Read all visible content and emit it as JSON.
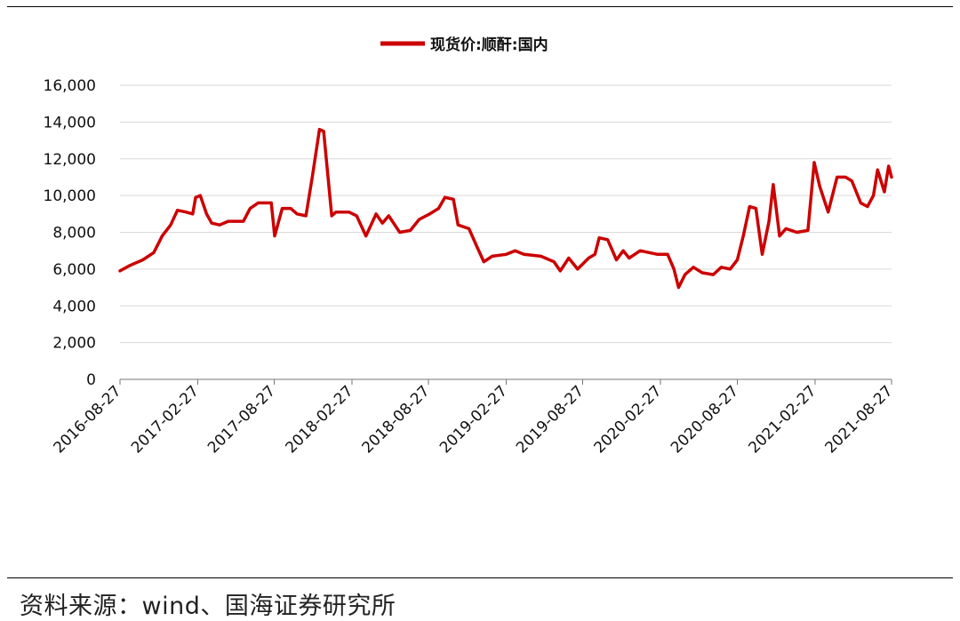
{
  "source": "资料来源：wind、国海证券研究所",
  "chart_data": {
    "type": "line",
    "title": "",
    "xlabel": "",
    "ylabel": "",
    "legend_position": "top",
    "grid": "horizontal",
    "line_color": "#cc0000",
    "x_range": [
      "2016-08-27",
      "2021-08-27"
    ],
    "ylim": [
      0,
      16000
    ],
    "yticks": [
      0,
      2000,
      4000,
      6000,
      8000,
      10000,
      12000,
      14000,
      16000
    ],
    "ytick_labels": [
      "0",
      "2,000",
      "4,000",
      "6,000",
      "8,000",
      "10,000",
      "12,000",
      "14,000",
      "16,000"
    ],
    "xtick_labels": [
      "2016-08-27",
      "2017-02-27",
      "2017-08-27",
      "2018-02-27",
      "2018-08-27",
      "2019-02-27",
      "2019-08-27",
      "2020-02-27",
      "2020-08-27",
      "2021-02-27",
      "2021-08-27"
    ],
    "series": [
      {
        "name": "现货价:顺酐:国内",
        "points": [
          [
            "2016-08-27",
            5900
          ],
          [
            "2016-09-20",
            6200
          ],
          [
            "2016-10-20",
            6500
          ],
          [
            "2016-11-15",
            6900
          ],
          [
            "2016-12-05",
            7800
          ],
          [
            "2016-12-25",
            8400
          ],
          [
            "2017-01-10",
            9200
          ],
          [
            "2017-01-30",
            9100
          ],
          [
            "2017-02-15",
            9000
          ],
          [
            "2017-02-22",
            9900
          ],
          [
            "2017-03-05",
            10000
          ],
          [
            "2017-03-20",
            9000
          ],
          [
            "2017-04-01",
            8500
          ],
          [
            "2017-04-20",
            8400
          ],
          [
            "2017-05-10",
            8600
          ],
          [
            "2017-06-15",
            8600
          ],
          [
            "2017-07-01",
            9300
          ],
          [
            "2017-07-20",
            9600
          ],
          [
            "2017-08-20",
            9600
          ],
          [
            "2017-08-28",
            7800
          ],
          [
            "2017-09-15",
            9300
          ],
          [
            "2017-10-05",
            9300
          ],
          [
            "2017-10-20",
            9000
          ],
          [
            "2017-11-10",
            8900
          ],
          [
            "2017-11-25",
            11000
          ],
          [
            "2017-12-12",
            13600
          ],
          [
            "2017-12-22",
            13500
          ],
          [
            "2018-01-10",
            8900
          ],
          [
            "2018-01-20",
            9100
          ],
          [
            "2018-02-20",
            9100
          ],
          [
            "2018-03-10",
            8900
          ],
          [
            "2018-04-01",
            7800
          ],
          [
            "2018-04-25",
            9000
          ],
          [
            "2018-05-10",
            8500
          ],
          [
            "2018-05-25",
            8900
          ],
          [
            "2018-06-20",
            8000
          ],
          [
            "2018-07-15",
            8100
          ],
          [
            "2018-08-05",
            8700
          ],
          [
            "2018-08-30",
            9000
          ],
          [
            "2018-09-20",
            9300
          ],
          [
            "2018-10-05",
            9900
          ],
          [
            "2018-10-25",
            9800
          ],
          [
            "2018-11-05",
            8400
          ],
          [
            "2018-12-01",
            8200
          ],
          [
            "2018-12-20",
            7200
          ],
          [
            "2019-01-05",
            6400
          ],
          [
            "2019-01-25",
            6700
          ],
          [
            "2019-02-27",
            6800
          ],
          [
            "2019-03-20",
            7000
          ],
          [
            "2019-04-10",
            6800
          ],
          [
            "2019-05-20",
            6700
          ],
          [
            "2019-06-20",
            6400
          ],
          [
            "2019-07-05",
            5900
          ],
          [
            "2019-07-25",
            6600
          ],
          [
            "2019-08-15",
            6000
          ],
          [
            "2019-09-10",
            6600
          ],
          [
            "2019-09-25",
            6800
          ],
          [
            "2019-10-05",
            7700
          ],
          [
            "2019-10-25",
            7600
          ],
          [
            "2019-11-15",
            6500
          ],
          [
            "2019-12-01",
            7000
          ],
          [
            "2019-12-15",
            6600
          ],
          [
            "2020-01-10",
            7000
          ],
          [
            "2020-02-20",
            6800
          ],
          [
            "2020-03-15",
            6800
          ],
          [
            "2020-03-30",
            6000
          ],
          [
            "2020-04-10",
            5000
          ],
          [
            "2020-04-25",
            5700
          ],
          [
            "2020-05-15",
            6100
          ],
          [
            "2020-06-05",
            5800
          ],
          [
            "2020-07-01",
            5700
          ],
          [
            "2020-07-20",
            6100
          ],
          [
            "2020-08-10",
            6000
          ],
          [
            "2020-08-27",
            6500
          ],
          [
            "2020-09-10",
            7800
          ],
          [
            "2020-09-25",
            9400
          ],
          [
            "2020-10-10",
            9300
          ],
          [
            "2020-10-25",
            6800
          ],
          [
            "2020-11-10",
            8600
          ],
          [
            "2020-11-20",
            10600
          ],
          [
            "2020-12-05",
            7800
          ],
          [
            "2020-12-20",
            8200
          ],
          [
            "2021-01-15",
            8000
          ],
          [
            "2021-02-10",
            8100
          ],
          [
            "2021-02-25",
            11800
          ],
          [
            "2021-03-10",
            10500
          ],
          [
            "2021-03-30",
            9100
          ],
          [
            "2021-04-20",
            11000
          ],
          [
            "2021-05-10",
            11000
          ],
          [
            "2021-05-25",
            10800
          ],
          [
            "2021-06-15",
            9600
          ],
          [
            "2021-07-01",
            9400
          ],
          [
            "2021-07-15",
            10000
          ],
          [
            "2021-07-25",
            11400
          ],
          [
            "2021-08-10",
            10200
          ],
          [
            "2021-08-20",
            11600
          ],
          [
            "2021-08-27",
            11000
          ]
        ]
      }
    ]
  }
}
